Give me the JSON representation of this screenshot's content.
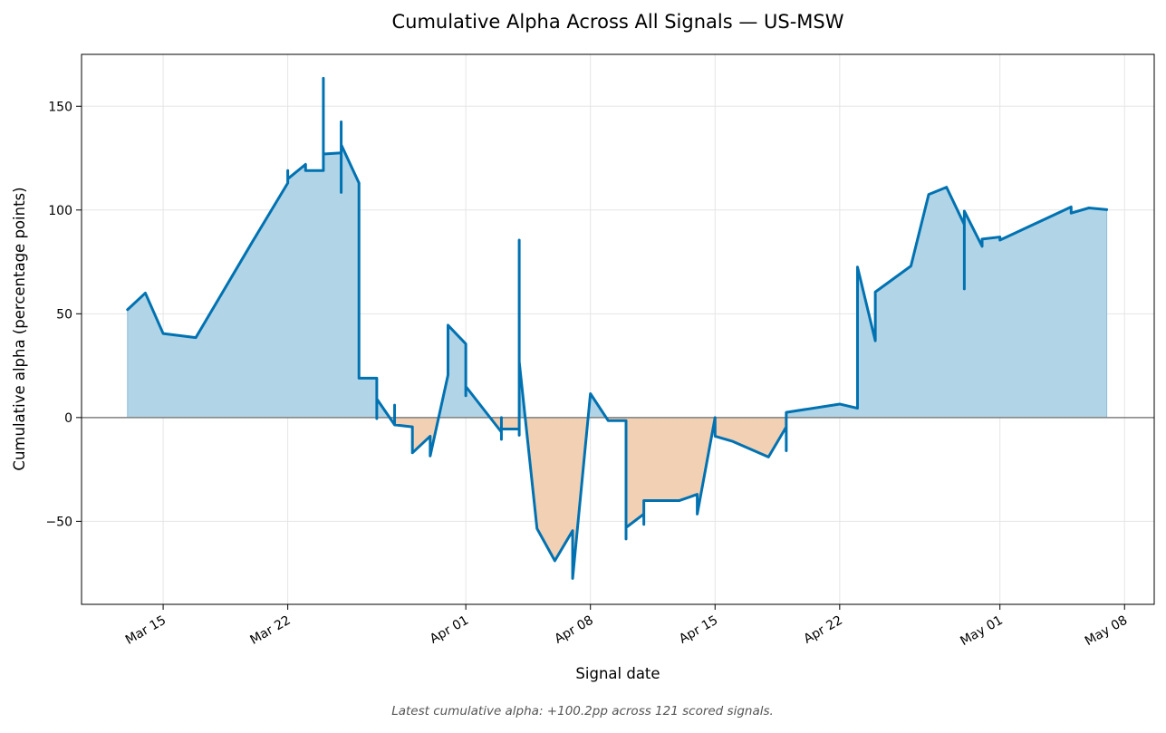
{
  "chart_data": {
    "type": "line",
    "title": "Cumulative Alpha Across All Signals — US-MSW",
    "xlabel": "Signal date",
    "ylabel": "Cumulative alpha (percentage points)",
    "footnote": "Latest cumulative alpha: +100.2pp across 121 scored signals.",
    "x_axis": {
      "type": "date",
      "range": [
        "2024-03-10T10:00",
        "2024-05-09T16:00"
      ],
      "ticks": [
        {
          "date": "2024-03-15",
          "label": "Mar 15"
        },
        {
          "date": "2024-03-22",
          "label": "Mar 22"
        },
        {
          "date": "2024-04-01",
          "label": "Apr 01"
        },
        {
          "date": "2024-04-08",
          "label": "Apr 08"
        },
        {
          "date": "2024-04-15",
          "label": "Apr 15"
        },
        {
          "date": "2024-04-22",
          "label": "Apr 22"
        },
        {
          "date": "2024-05-01",
          "label": "May 01"
        },
        {
          "date": "2024-05-08",
          "label": "May 08"
        }
      ],
      "tick_label_rotation": 30
    },
    "y_axis": {
      "range": [
        -90,
        175
      ],
      "ticks": [
        -50,
        0,
        50,
        100,
        150
      ]
    },
    "grid": true,
    "zero_line": true,
    "colors": {
      "line": "#0072b2",
      "fill_positive": "#b1d4e6",
      "fill_negative": "#f2d0b4",
      "zero_line": "#808080",
      "grid": "#e5e5e5"
    },
    "series": [
      {
        "points": [
          [
            "2024-03-13T00:00",
            52
          ],
          [
            "2024-03-14T00:00",
            60
          ],
          [
            "2024-03-15T00:00",
            40.5
          ],
          [
            "2024-03-16T20:00",
            38.5
          ],
          [
            "2024-03-20T00:00",
            84.5
          ],
          [
            "2024-03-22T00:00",
            113
          ],
          [
            "2024-03-22T00:00",
            119
          ],
          [
            "2024-03-22T00:00",
            115
          ],
          [
            "2024-03-23T00:00",
            122
          ],
          [
            "2024-03-23T00:00",
            119
          ],
          [
            "2024-03-24T00:00",
            119
          ],
          [
            "2024-03-24T00:00",
            163.5
          ],
          [
            "2024-03-24T00:00",
            127
          ],
          [
            "2024-03-25T00:00",
            127.5
          ],
          [
            "2024-03-25T00:00",
            142.5
          ],
          [
            "2024-03-25T00:00",
            108.5
          ],
          [
            "2024-03-25T00:00",
            131.5
          ],
          [
            "2024-03-26T00:00",
            113
          ],
          [
            "2024-03-26T00:00",
            19
          ],
          [
            "2024-03-27T00:00",
            19
          ],
          [
            "2024-03-27T00:00",
            -0.5
          ],
          [
            "2024-03-27T00:00",
            9
          ],
          [
            "2024-03-28T00:00",
            -3.5
          ],
          [
            "2024-03-28T00:00",
            6
          ],
          [
            "2024-03-28T00:00",
            -3.5
          ],
          [
            "2024-03-29T00:00",
            -4.5
          ],
          [
            "2024-03-29T00:00",
            -17
          ],
          [
            "2024-03-30T00:00",
            -9
          ],
          [
            "2024-03-30T00:00",
            -18.5
          ],
          [
            "2024-03-31T00:00",
            20.5
          ],
          [
            "2024-03-31T00:00",
            44.5
          ],
          [
            "2024-04-01T00:00",
            35.5
          ],
          [
            "2024-04-01T00:00",
            10.5
          ],
          [
            "2024-04-01T00:00",
            15
          ],
          [
            "2024-04-03T00:00",
            -7
          ],
          [
            "2024-04-03T00:00",
            0
          ],
          [
            "2024-04-03T00:00",
            -10.5
          ],
          [
            "2024-04-03T00:00",
            -5.5
          ],
          [
            "2024-04-04T00:00",
            -5.5
          ],
          [
            "2024-04-04T00:00",
            -8.5
          ],
          [
            "2024-04-04T00:00",
            85.5
          ],
          [
            "2024-04-04T00:00",
            27
          ],
          [
            "2024-04-05T00:00",
            -53.5
          ],
          [
            "2024-04-06T00:00",
            -69
          ],
          [
            "2024-04-07T00:00",
            -54.5
          ],
          [
            "2024-04-07T00:00",
            -77.5
          ],
          [
            "2024-04-08T00:00",
            11.5
          ],
          [
            "2024-04-09T00:00",
            -1.5
          ],
          [
            "2024-04-10T00:00",
            -1.5
          ],
          [
            "2024-04-10T00:00",
            -58.5
          ],
          [
            "2024-04-10T00:00",
            -53
          ],
          [
            "2024-04-11T00:00",
            -46.5
          ],
          [
            "2024-04-11T00:00",
            -51.5
          ],
          [
            "2024-04-11T00:00",
            -40
          ],
          [
            "2024-04-13T00:00",
            -40
          ],
          [
            "2024-04-14T00:00",
            -37
          ],
          [
            "2024-04-14T00:00",
            -46.5
          ],
          [
            "2024-04-15T00:00",
            0
          ],
          [
            "2024-04-15T00:00",
            -9
          ],
          [
            "2024-04-16T00:00",
            -11.5
          ],
          [
            "2024-04-18T00:00",
            -19
          ],
          [
            "2024-04-19T00:00",
            -4.5
          ],
          [
            "2024-04-19T00:00",
            -16
          ],
          [
            "2024-04-19T00:00",
            2.5
          ],
          [
            "2024-04-22T00:00",
            6.5
          ],
          [
            "2024-04-23T00:00",
            4.5
          ],
          [
            "2024-04-23T00:00",
            72.5
          ],
          [
            "2024-04-24T00:00",
            37
          ],
          [
            "2024-04-24T00:00",
            60.5
          ],
          [
            "2024-04-26T00:00",
            73
          ],
          [
            "2024-04-27T00:00",
            107.5
          ],
          [
            "2024-04-28T00:00",
            111
          ],
          [
            "2024-04-29T00:00",
            93
          ],
          [
            "2024-04-29T00:00",
            62
          ],
          [
            "2024-04-29T00:00",
            99.5
          ],
          [
            "2024-04-30T00:00",
            82.5
          ],
          [
            "2024-04-30T00:00",
            86
          ],
          [
            "2024-05-01T00:00",
            87
          ],
          [
            "2024-05-01T00:00",
            85.5
          ],
          [
            "2024-05-05T00:00",
            101.5
          ],
          [
            "2024-05-05T00:00",
            98.5
          ],
          [
            "2024-05-06T00:00",
            101
          ],
          [
            "2024-05-07T00:00",
            100.2
          ]
        ]
      }
    ]
  }
}
